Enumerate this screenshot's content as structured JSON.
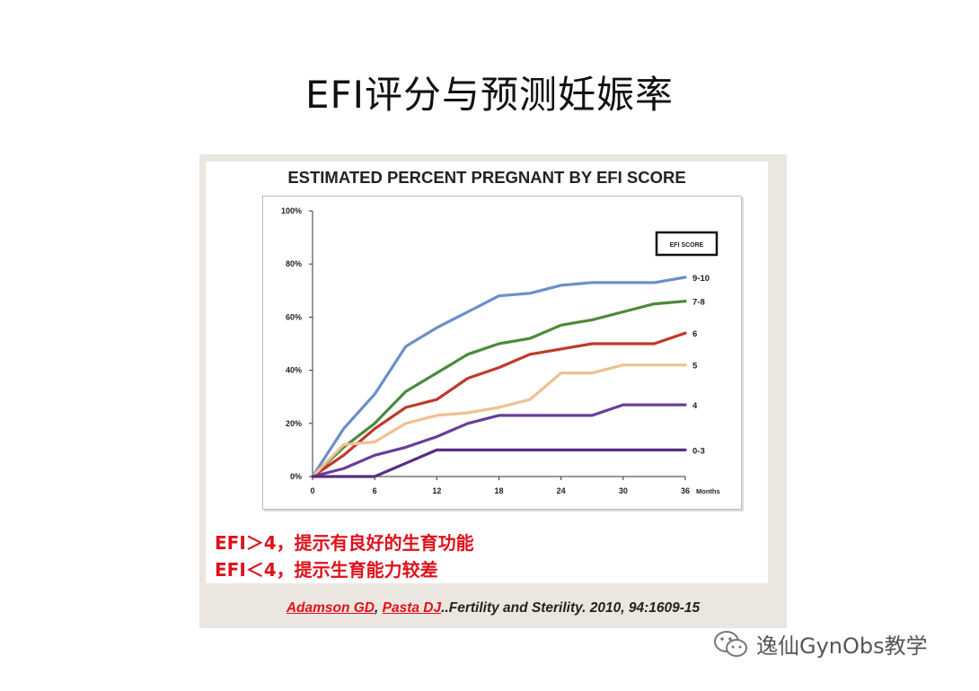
{
  "slide": {
    "title": "EFI评分与预测妊娠率",
    "notes": [
      "EFI＞4，提示有良好的生育功能",
      "EFI＜4，提示生育能力较差"
    ],
    "citation": {
      "author1": "Adamson GD",
      "sep": ", ",
      "author2": "Pasta DJ",
      "rest": "..Fertility and Sterility. 2010, 94:1609-15"
    },
    "watermark": "逸仙GynObs教学"
  },
  "chart_data": {
    "type": "line",
    "title": "ESTIMATED PERCENT PREGNANT BY EFI SCORE",
    "xlabel": "Months",
    "ylabel": "",
    "xlim": [
      0,
      36
    ],
    "ylim": [
      0,
      100
    ],
    "x_ticks": [
      "0",
      "6",
      "12",
      "18",
      "24",
      "30",
      "36"
    ],
    "y_ticks": [
      "0%",
      "20%",
      "40%",
      "60%",
      "80%",
      "100%"
    ],
    "legend_title": "EFI SCORE",
    "legend_position": "top-right",
    "grid": false,
    "x": [
      0,
      3,
      6,
      9,
      12,
      15,
      18,
      21,
      24,
      27,
      30,
      33,
      36
    ],
    "series": [
      {
        "name": "9-10",
        "color": "#6b8fca",
        "values": [
          0,
          18,
          31,
          49,
          56,
          62,
          68,
          69,
          72,
          73,
          73,
          73,
          75
        ]
      },
      {
        "name": "7-8",
        "color": "#4a8a3c",
        "values": [
          0,
          11,
          20,
          32,
          39,
          46,
          50,
          52,
          57,
          59,
          62,
          65,
          66
        ]
      },
      {
        "name": "6",
        "color": "#c0392b",
        "values": [
          0,
          8,
          18,
          26,
          29,
          37,
          41,
          46,
          48,
          50,
          50,
          50,
          54
        ]
      },
      {
        "name": "5",
        "color": "#f0c090",
        "values": [
          0,
          12,
          13,
          20,
          23,
          24,
          26,
          29,
          39,
          39,
          42,
          42,
          42
        ]
      },
      {
        "name": "4",
        "color": "#6a3d9a",
        "values": [
          0,
          3,
          8,
          11,
          15,
          20,
          23,
          23,
          23,
          23,
          27,
          27,
          27
        ]
      },
      {
        "name": "0-3",
        "color": "#5a2d82",
        "values": [
          0,
          0,
          0,
          5,
          10,
          10,
          10,
          10,
          10,
          10,
          10,
          10,
          10
        ]
      }
    ]
  }
}
